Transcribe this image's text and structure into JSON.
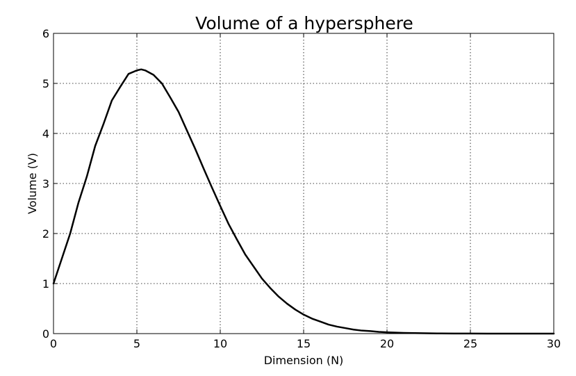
{
  "chart_data": {
    "type": "line",
    "title": "Volume of a hypersphere",
    "xlabel": "Dimension (N)",
    "ylabel": "Volume (V)",
    "xlim": [
      0,
      30
    ],
    "ylim": [
      0,
      6
    ],
    "xticks": [
      0,
      5,
      10,
      15,
      20,
      25,
      30
    ],
    "yticks": [
      0,
      1,
      2,
      3,
      4,
      5,
      6
    ],
    "grid": true,
    "grid_style": "dotted",
    "line_color": "#000000",
    "series": [
      {
        "x": [
          0,
          0.5,
          1,
          1.5,
          2,
          2.5,
          3,
          3.5,
          4,
          4.5,
          5,
          5.26,
          5.5,
          6,
          6.5,
          7,
          7.5,
          8,
          8.5,
          9,
          9.5,
          10,
          10.5,
          11,
          11.5,
          12,
          12.5,
          13,
          13.5,
          14,
          14.5,
          15,
          15.5,
          16,
          16.5,
          17,
          17.5,
          18,
          18.5,
          19,
          19.5,
          20,
          21,
          22,
          23,
          24,
          25,
          26,
          27,
          28,
          29,
          30
        ],
        "y": [
          1.0,
          1.5,
          2.0,
          2.62,
          3.14,
          3.75,
          4.19,
          4.66,
          4.93,
          5.19,
          5.26,
          5.28,
          5.26,
          5.17,
          5.0,
          4.72,
          4.43,
          4.06,
          3.69,
          3.3,
          2.92,
          2.55,
          2.19,
          1.88,
          1.58,
          1.34,
          1.1,
          0.91,
          0.74,
          0.6,
          0.48,
          0.38,
          0.3,
          0.24,
          0.18,
          0.14,
          0.11,
          0.08,
          0.06,
          0.05,
          0.035,
          0.026,
          0.014,
          0.008,
          0.004,
          0.002,
          0.001,
          0.0005,
          0.0002,
          0.0001,
          5e-05,
          2e-05
        ]
      }
    ]
  }
}
